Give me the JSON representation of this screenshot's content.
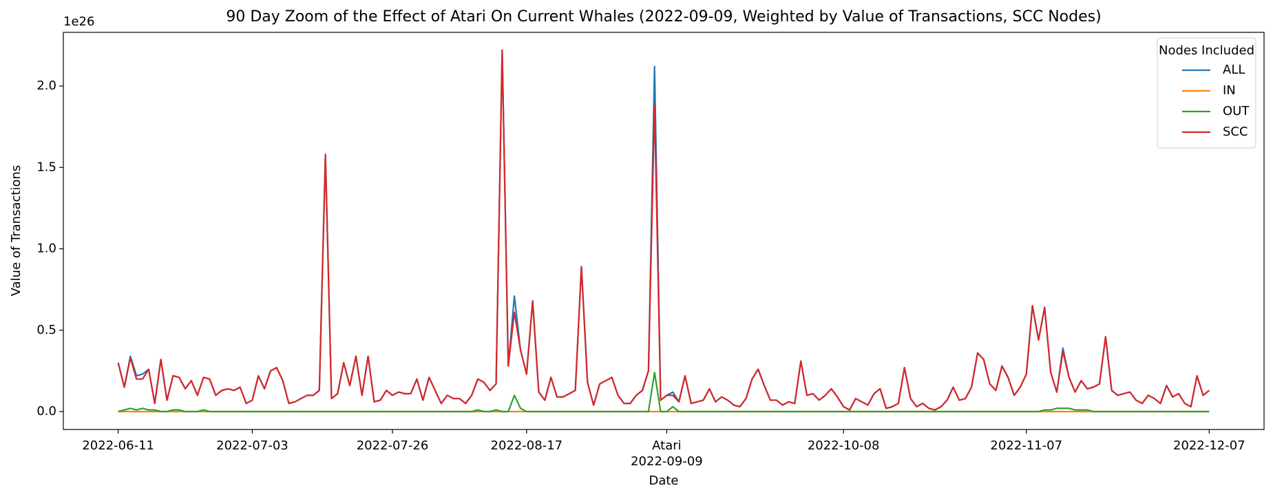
{
  "chart_data": {
    "type": "line",
    "title": "90 Day Zoom of the Effect of Atari On Current Whales (2022-09-09, Weighted by Value of Transactions, SCC Nodes)",
    "xlabel": "Date",
    "ylabel": "Value of Transactions",
    "y_offset_label": "1e26",
    "legend_title": "Nodes Included",
    "legend_loc": "upper right",
    "grid": false,
    "annotations": [
      {
        "text": "Atari",
        "x": "2022-09-09"
      }
    ],
    "xlim": [
      "2022-06-02",
      "2022-12-16"
    ],
    "xticks": [
      "2022-06-11",
      "2022-07-03",
      "2022-07-26",
      "2022-08-17",
      "2022-09-09",
      "2022-10-08",
      "2022-11-07",
      "2022-12-07"
    ],
    "ylim": [
      -0.11,
      2.33
    ],
    "yticks": [
      {
        "value": 0,
        "label": "0.0"
      },
      0.5,
      {
        "value": 1,
        "label": "1.0"
      },
      1.5,
      {
        "value": 2,
        "label": "2.0"
      }
    ],
    "x": [
      "2022-06-11",
      "2022-06-12",
      "2022-06-13",
      "2022-06-14",
      "2022-06-15",
      "2022-06-16",
      "2022-06-17",
      "2022-06-18",
      "2022-06-19",
      "2022-06-20",
      "2022-06-21",
      "2022-06-22",
      "2022-06-23",
      "2022-06-24",
      "2022-06-25",
      "2022-06-26",
      "2022-06-27",
      "2022-06-28",
      "2022-06-29",
      "2022-06-30",
      "2022-07-01",
      "2022-07-02",
      "2022-07-03",
      "2022-07-04",
      "2022-07-05",
      "2022-07-06",
      "2022-07-07",
      "2022-07-08",
      "2022-07-09",
      "2022-07-10",
      "2022-07-11",
      "2022-07-12",
      "2022-07-13",
      "2022-07-14",
      "2022-07-15",
      "2022-07-16",
      "2022-07-17",
      "2022-07-18",
      "2022-07-19",
      "2022-07-20",
      "2022-07-21",
      "2022-07-22",
      "2022-07-23",
      "2022-07-24",
      "2022-07-25",
      "2022-07-26",
      "2022-07-27",
      "2022-07-28",
      "2022-07-29",
      "2022-07-30",
      "2022-07-31",
      "2022-08-01",
      "2022-08-02",
      "2022-08-03",
      "2022-08-04",
      "2022-08-05",
      "2022-08-06",
      "2022-08-07",
      "2022-08-08",
      "2022-08-09",
      "2022-08-10",
      "2022-08-11",
      "2022-08-12",
      "2022-08-13",
      "2022-08-14",
      "2022-08-15",
      "2022-08-16",
      "2022-08-17",
      "2022-08-18",
      "2022-08-19",
      "2022-08-20",
      "2022-08-21",
      "2022-08-22",
      "2022-08-23",
      "2022-08-24",
      "2022-08-25",
      "2022-08-26",
      "2022-08-27",
      "2022-08-28",
      "2022-08-29",
      "2022-08-30",
      "2022-08-31",
      "2022-09-01",
      "2022-09-02",
      "2022-09-03",
      "2022-09-04",
      "2022-09-05",
      "2022-09-06",
      "2022-09-07",
      "2022-09-08",
      "2022-09-09",
      "2022-09-10",
      "2022-09-11",
      "2022-09-12",
      "2022-09-13",
      "2022-09-14",
      "2022-09-15",
      "2022-09-16",
      "2022-09-17",
      "2022-09-18",
      "2022-09-19",
      "2022-09-20",
      "2022-09-21",
      "2022-09-22",
      "2022-09-23",
      "2022-09-24",
      "2022-09-25",
      "2022-09-26",
      "2022-09-27",
      "2022-09-28",
      "2022-09-29",
      "2022-09-30",
      "2022-10-01",
      "2022-10-02",
      "2022-10-03",
      "2022-10-04",
      "2022-10-05",
      "2022-10-06",
      "2022-10-07",
      "2022-10-08",
      "2022-10-09",
      "2022-10-10",
      "2022-10-11",
      "2022-10-12",
      "2022-10-13",
      "2022-10-14",
      "2022-10-15",
      "2022-10-16",
      "2022-10-17",
      "2022-10-18",
      "2022-10-19",
      "2022-10-20",
      "2022-10-21",
      "2022-10-22",
      "2022-10-23",
      "2022-10-24",
      "2022-10-25",
      "2022-10-26",
      "2022-10-27",
      "2022-10-28",
      "2022-10-29",
      "2022-10-30",
      "2022-10-31",
      "2022-11-01",
      "2022-11-02",
      "2022-11-03",
      "2022-11-04",
      "2022-11-05",
      "2022-11-06",
      "2022-11-07",
      "2022-11-08",
      "2022-11-09",
      "2022-11-10",
      "2022-11-11",
      "2022-11-12",
      "2022-11-13",
      "2022-11-14",
      "2022-11-15",
      "2022-11-16",
      "2022-11-17",
      "2022-11-18",
      "2022-11-19",
      "2022-11-20",
      "2022-11-21",
      "2022-11-22",
      "2022-11-23",
      "2022-11-24",
      "2022-11-25",
      "2022-11-26",
      "2022-11-27",
      "2022-11-28",
      "2022-11-29",
      "2022-11-30",
      "2022-12-01",
      "2022-12-02",
      "2022-12-03",
      "2022-12-04",
      "2022-12-05",
      "2022-12-06",
      "2022-12-07"
    ],
    "series": [
      {
        "name": "ALL",
        "color": "#1f77b4",
        "values": [
          0.3,
          0.15,
          0.34,
          0.22,
          0.23,
          0.26,
          0.05,
          0.32,
          0.07,
          0.22,
          0.21,
          0.14,
          0.19,
          0.1,
          0.21,
          0.2,
          0.1,
          0.13,
          0.14,
          0.13,
          0.15,
          0.05,
          0.07,
          0.22,
          0.14,
          0.25,
          0.27,
          0.19,
          0.05,
          0.06,
          0.08,
          0.1,
          0.1,
          0.13,
          1.58,
          0.08,
          0.11,
          0.3,
          0.16,
          0.34,
          0.1,
          0.34,
          0.06,
          0.07,
          0.13,
          0.1,
          0.12,
          0.11,
          0.11,
          0.2,
          0.07,
          0.21,
          0.13,
          0.05,
          0.1,
          0.08,
          0.08,
          0.05,
          0.1,
          0.2,
          0.18,
          0.13,
          0.17,
          2.22,
          0.28,
          0.71,
          0.38,
          0.23,
          0.68,
          0.12,
          0.07,
          0.21,
          0.09,
          0.09,
          0.11,
          0.13,
          0.89,
          0.18,
          0.04,
          0.17,
          0.19,
          0.21,
          0.1,
          0.05,
          0.05,
          0.1,
          0.13,
          0.25,
          2.12,
          0.07,
          0.1,
          0.12,
          0.06,
          0.22,
          0.05,
          0.06,
          0.07,
          0.14,
          0.06,
          0.09,
          0.07,
          0.04,
          0.03,
          0.08,
          0.2,
          0.26,
          0.16,
          0.07,
          0.07,
          0.04,
          0.06,
          0.05,
          0.31,
          0.1,
          0.11,
          0.07,
          0.1,
          0.14,
          0.09,
          0.03,
          0.01,
          0.08,
          0.06,
          0.04,
          0.11,
          0.14,
          0.02,
          0.03,
          0.05,
          0.27,
          0.08,
          0.03,
          0.05,
          0.02,
          0.01,
          0.03,
          0.07,
          0.15,
          0.07,
          0.08,
          0.15,
          0.36,
          0.32,
          0.17,
          0.13,
          0.28,
          0.21,
          0.1,
          0.15,
          0.23,
          0.65,
          0.44,
          0.64,
          0.24,
          0.12,
          0.39,
          0.21,
          0.12,
          0.19,
          0.14,
          0.15,
          0.17,
          0.46,
          0.13,
          0.1,
          0.11,
          0.12,
          0.07,
          0.05,
          0.1,
          0.08,
          0.05,
          0.16,
          0.09,
          0.11,
          0.05,
          0.03,
          0.22,
          0.1,
          0.13
        ]
      },
      {
        "name": "IN",
        "color": "#ff7f0e",
        "values": [
          0,
          0,
          0,
          0,
          0,
          0,
          0,
          0,
          0,
          0,
          0,
          0,
          0,
          0,
          0,
          0,
          0,
          0,
          0,
          0,
          0,
          0,
          0,
          0,
          0,
          0,
          0,
          0,
          0,
          0,
          0,
          0,
          0,
          0,
          0,
          0,
          0,
          0,
          0,
          0,
          0,
          0,
          0,
          0,
          0,
          0,
          0,
          0,
          0,
          0,
          0,
          0,
          0,
          0,
          0,
          0,
          0,
          0,
          0,
          0,
          0,
          0,
          0,
          0,
          0,
          0,
          0,
          0,
          0,
          0,
          0,
          0,
          0,
          0,
          0,
          0,
          0,
          0,
          0,
          0,
          0,
          0,
          0,
          0,
          0,
          0,
          0,
          0,
          0,
          0,
          0,
          0,
          0,
          0,
          0,
          0,
          0,
          0,
          0,
          0,
          0,
          0,
          0,
          0,
          0,
          0,
          0,
          0,
          0,
          0,
          0,
          0,
          0,
          0,
          0,
          0,
          0,
          0,
          0,
          0,
          0,
          0,
          0,
          0,
          0,
          0,
          0,
          0,
          0,
          0,
          0,
          0,
          0,
          0,
          0,
          0,
          0,
          0,
          0,
          0,
          0,
          0,
          0,
          0,
          0,
          0,
          0,
          0,
          0,
          0,
          0,
          0,
          0,
          0,
          0,
          0,
          0,
          0,
          0,
          0,
          0,
          0,
          0,
          0,
          0,
          0,
          0,
          0,
          0,
          0,
          0,
          0,
          0,
          0,
          0,
          0,
          0,
          0,
          0,
          0
        ]
      },
      {
        "name": "OUT",
        "color": "#2ca02c",
        "values": [
          0,
          0.01,
          0.02,
          0.01,
          0.02,
          0.01,
          0.01,
          0,
          0,
          0.01,
          0.01,
          0,
          0,
          0,
          0.01,
          0,
          0,
          0,
          0,
          0,
          0,
          0,
          0,
          0,
          0,
          0,
          0,
          0,
          0,
          0,
          0,
          0,
          0,
          0,
          0,
          0,
          0,
          0,
          0,
          0,
          0,
          0,
          0,
          0,
          0,
          0,
          0,
          0,
          0,
          0,
          0,
          0,
          0,
          0,
          0,
          0,
          0,
          0,
          0,
          0.01,
          0,
          0,
          0.01,
          0,
          0,
          0.1,
          0.02,
          0,
          0,
          0,
          0,
          0,
          0,
          0,
          0,
          0,
          0,
          0,
          0,
          0,
          0,
          0,
          0,
          0,
          0,
          0,
          0,
          0,
          0.24,
          0,
          0,
          0.03,
          0,
          0,
          0,
          0,
          0,
          0,
          0,
          0,
          0,
          0,
          0,
          0,
          0,
          0,
          0,
          0,
          0,
          0,
          0,
          0,
          0,
          0,
          0,
          0,
          0,
          0,
          0,
          0,
          0,
          0,
          0,
          0,
          0,
          0,
          0,
          0,
          0,
          0,
          0,
          0,
          0,
          0,
          0,
          0,
          0,
          0,
          0,
          0,
          0,
          0,
          0,
          0,
          0,
          0,
          0,
          0,
          0,
          0,
          0,
          0,
          0.01,
          0.01,
          0.02,
          0.02,
          0.02,
          0.01,
          0.01,
          0.01,
          0,
          0,
          0,
          0,
          0,
          0,
          0,
          0,
          0,
          0,
          0,
          0,
          0,
          0,
          0,
          0,
          0,
          0,
          0,
          0
        ]
      },
      {
        "name": "SCC",
        "color": "#d62728",
        "values": [
          0.3,
          0.15,
          0.33,
          0.2,
          0.2,
          0.26,
          0.05,
          0.32,
          0.07,
          0.22,
          0.21,
          0.14,
          0.19,
          0.1,
          0.21,
          0.2,
          0.1,
          0.13,
          0.14,
          0.13,
          0.15,
          0.05,
          0.07,
          0.22,
          0.14,
          0.25,
          0.27,
          0.19,
          0.05,
          0.06,
          0.08,
          0.1,
          0.1,
          0.13,
          1.58,
          0.08,
          0.11,
          0.3,
          0.16,
          0.34,
          0.1,
          0.34,
          0.06,
          0.07,
          0.13,
          0.1,
          0.12,
          0.11,
          0.11,
          0.2,
          0.07,
          0.21,
          0.13,
          0.05,
          0.1,
          0.08,
          0.08,
          0.05,
          0.1,
          0.2,
          0.18,
          0.13,
          0.17,
          2.22,
          0.28,
          0.61,
          0.38,
          0.23,
          0.68,
          0.12,
          0.07,
          0.21,
          0.09,
          0.09,
          0.11,
          0.13,
          0.89,
          0.18,
          0.04,
          0.17,
          0.19,
          0.21,
          0.1,
          0.05,
          0.05,
          0.1,
          0.13,
          0.25,
          1.88,
          0.07,
          0.1,
          0.1,
          0.06,
          0.22,
          0.05,
          0.06,
          0.07,
          0.14,
          0.06,
          0.09,
          0.07,
          0.04,
          0.03,
          0.08,
          0.2,
          0.26,
          0.16,
          0.07,
          0.07,
          0.04,
          0.06,
          0.05,
          0.31,
          0.1,
          0.11,
          0.07,
          0.1,
          0.14,
          0.09,
          0.03,
          0.01,
          0.08,
          0.06,
          0.04,
          0.11,
          0.14,
          0.02,
          0.03,
          0.05,
          0.27,
          0.08,
          0.03,
          0.05,
          0.02,
          0.01,
          0.03,
          0.07,
          0.15,
          0.07,
          0.08,
          0.15,
          0.36,
          0.32,
          0.17,
          0.13,
          0.28,
          0.21,
          0.1,
          0.15,
          0.23,
          0.65,
          0.44,
          0.64,
          0.24,
          0.12,
          0.37,
          0.21,
          0.12,
          0.19,
          0.14,
          0.15,
          0.17,
          0.46,
          0.13,
          0.1,
          0.11,
          0.12,
          0.07,
          0.05,
          0.1,
          0.08,
          0.05,
          0.16,
          0.09,
          0.11,
          0.05,
          0.03,
          0.22,
          0.1,
          0.13
        ]
      }
    ]
  }
}
